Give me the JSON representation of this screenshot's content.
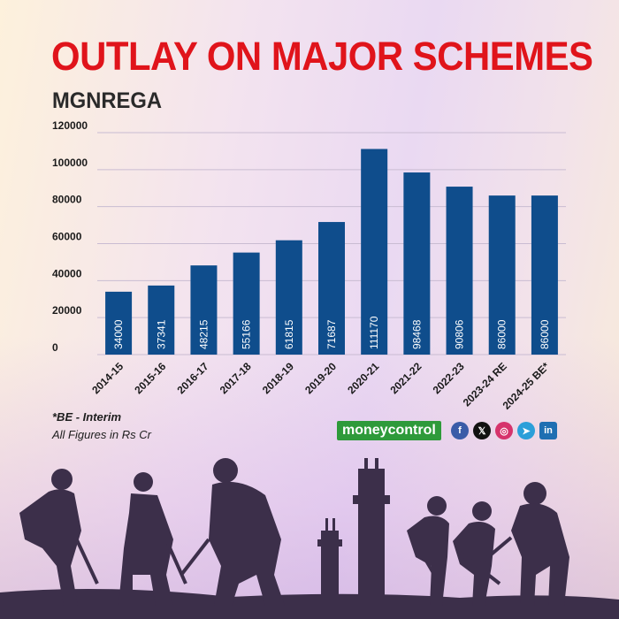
{
  "title": "OUTLAY ON MAJOR SCHEMES",
  "subtitle": "MGNREGA",
  "notes": {
    "line1": "*BE - Interim",
    "line2": "All Figures in Rs Cr"
  },
  "brand": {
    "logo_text": "moneycontrol"
  },
  "social": [
    {
      "name": "facebook-icon",
      "glyph": "f",
      "color": "#3a5ca8"
    },
    {
      "name": "x-icon",
      "glyph": "𝕏",
      "color": "#111111"
    },
    {
      "name": "instagram-icon",
      "glyph": "◎",
      "color": "#d6336c"
    },
    {
      "name": "telegram-icon",
      "glyph": "➤",
      "color": "#2b9fd9"
    },
    {
      "name": "linkedin-icon",
      "glyph": "in",
      "color": "#1f6fb2"
    }
  ],
  "colors": {
    "title": "#e0141b",
    "bar": "#0f4d8c",
    "bar_label": "#ffffff",
    "axis_text": "#1a1a1a",
    "grid": "#c9bcd2",
    "silhouette": "#3c2f4a"
  },
  "chart_data": {
    "type": "bar",
    "categories": [
      "2014-15",
      "2015-16",
      "2016-17",
      "2017-18",
      "2018-19",
      "2019-20",
      "2020-21",
      "2021-22",
      "2022-23",
      "2023-24 RE",
      "2024-25 BE*"
    ],
    "values": [
      34000,
      37341,
      48215,
      55166,
      61815,
      71687,
      111170,
      98468,
      90806,
      86000,
      86000
    ],
    "ylim": [
      0,
      120000
    ],
    "yticks": [
      0,
      20000,
      40000,
      60000,
      80000,
      100000,
      120000
    ],
    "data_labels": "inside-bar-vertical",
    "grid": true
  }
}
